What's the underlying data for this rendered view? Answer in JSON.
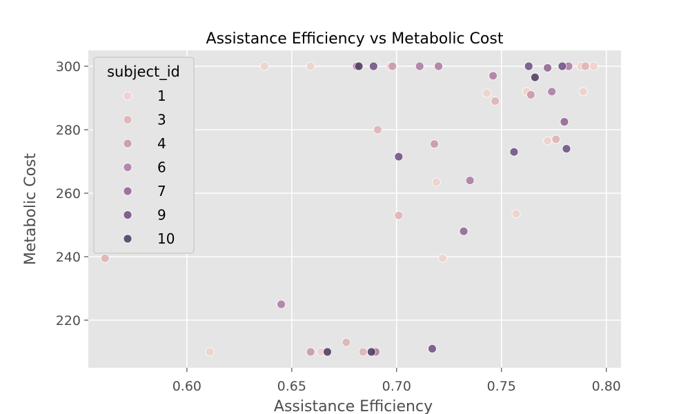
{
  "chart_data": {
    "type": "scatter",
    "title": "Assistance Efficiency vs Metabolic Cost",
    "xlabel": "Assistance Efficiency",
    "ylabel": "Metabolic Cost",
    "xlim": [
      0.553,
      0.807
    ],
    "ylim": [
      205,
      305
    ],
    "xticks": [
      0.6,
      0.65,
      0.7,
      0.75,
      0.8
    ],
    "xtick_labels": [
      "0.60",
      "0.65",
      "0.70",
      "0.75",
      "0.80"
    ],
    "yticks": [
      220,
      240,
      260,
      280,
      300
    ],
    "ytick_labels": [
      "220",
      "240",
      "260",
      "280",
      "300"
    ],
    "grid": true,
    "legend": {
      "title": "subject_id",
      "placement": "upper-left"
    },
    "colors": {
      "1": "#efd0cb",
      "3": "#dfb0b4",
      "4": "#c995aa",
      "6": "#ad7ba3",
      "7": "#906592",
      "9": "#6e5183",
      "10": "#4f3c60"
    },
    "series": [
      {
        "name": "1",
        "points": [
          [
            0.637,
            300
          ],
          [
            0.659,
            300
          ],
          [
            0.664,
            210
          ],
          [
            0.697,
            300
          ],
          [
            0.719,
            263.5
          ],
          [
            0.722,
            239.5
          ],
          [
            0.743,
            291.5
          ],
          [
            0.757,
            253.5
          ],
          [
            0.762,
            292
          ],
          [
            0.772,
            276.5
          ],
          [
            0.788,
            300
          ],
          [
            0.789,
            292
          ],
          [
            0.794,
            300
          ],
          [
            0.611,
            210
          ]
        ]
      },
      {
        "name": "3",
        "points": [
          [
            0.561,
            239.5
          ],
          [
            0.691,
            280
          ],
          [
            0.701,
            253
          ],
          [
            0.684,
            210
          ],
          [
            0.676,
            213
          ],
          [
            0.747,
            289
          ],
          [
            0.776,
            277
          ],
          [
            0.79,
            300
          ]
        ]
      },
      {
        "name": "4",
        "points": [
          [
            0.718,
            275.5
          ],
          [
            0.764,
            291
          ],
          [
            0.698,
            300
          ],
          [
            0.659,
            210
          ]
        ]
      },
      {
        "name": "6",
        "points": [
          [
            0.711,
            300
          ],
          [
            0.72,
            300
          ],
          [
            0.746,
            297
          ],
          [
            0.735,
            264
          ],
          [
            0.782,
            300
          ],
          [
            0.645,
            225
          ],
          [
            0.69,
            210
          ],
          [
            0.774,
            292
          ],
          [
            0.681,
            300
          ]
        ]
      },
      {
        "name": "7",
        "points": [
          [
            0.78,
            282.5
          ],
          [
            0.772,
            299.5
          ],
          [
            0.732,
            248
          ]
        ]
      },
      {
        "name": "9",
        "points": [
          [
            0.567,
            259
          ],
          [
            0.701,
            271.5
          ],
          [
            0.756,
            273
          ],
          [
            0.781,
            274
          ],
          [
            0.779,
            300
          ],
          [
            0.763,
            300
          ],
          [
            0.717,
            211
          ],
          [
            0.689,
            300
          ]
        ]
      },
      {
        "name": "10",
        "points": [
          [
            0.766,
            296.5
          ],
          [
            0.682,
            300
          ],
          [
            0.667,
            210
          ],
          [
            0.688,
            210
          ]
        ]
      }
    ]
  }
}
